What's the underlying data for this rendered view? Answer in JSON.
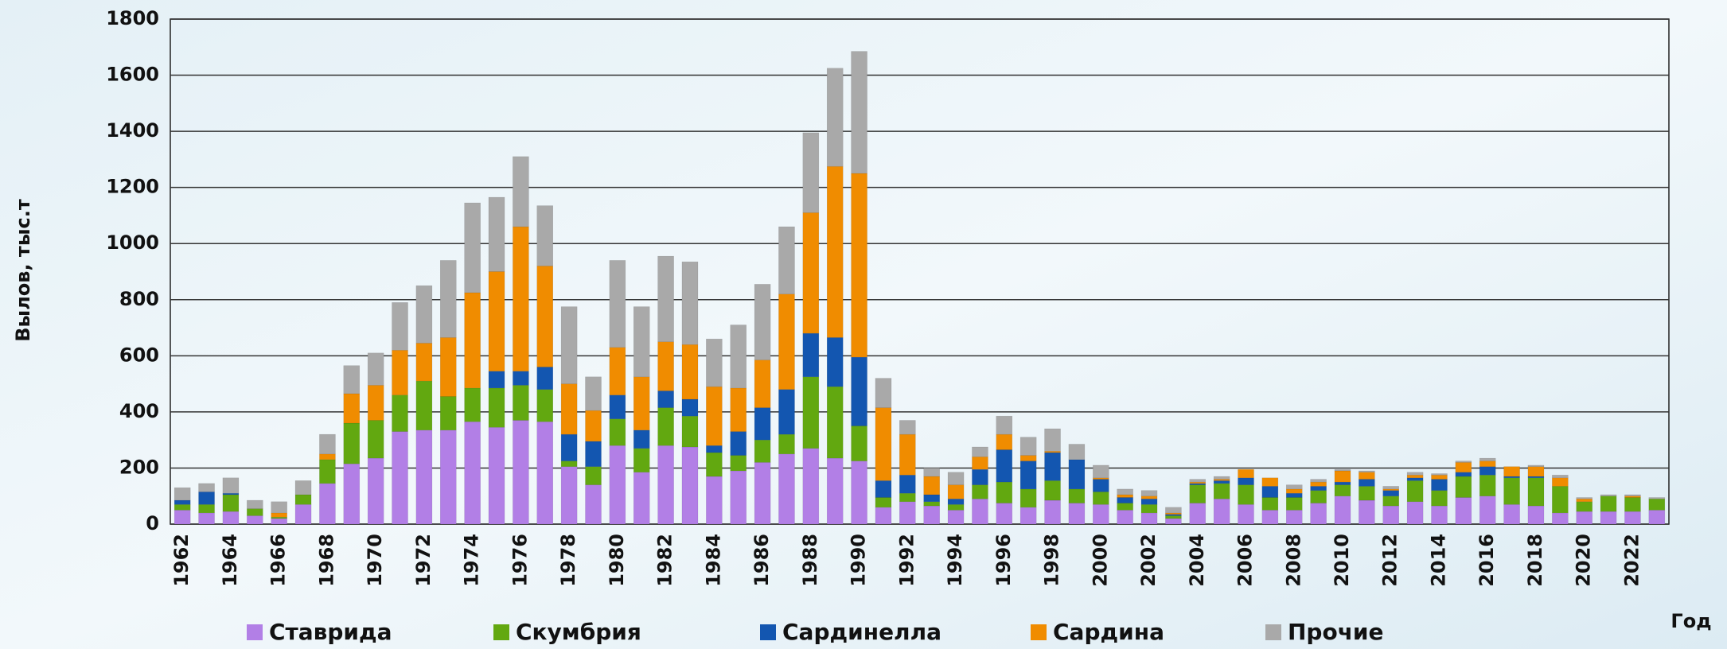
{
  "chart_data": {
    "type": "stacked_bar",
    "y_label": "Вылов, тыс.т",
    "x_label": "Год",
    "categories": [
      "1962",
      null,
      "1964",
      null,
      "1966",
      null,
      "1968",
      null,
      "1970",
      null,
      "1972",
      null,
      "1974",
      null,
      "1976",
      null,
      "1978",
      null,
      "1980",
      null,
      "1982",
      null,
      "1984",
      null,
      "1986",
      null,
      "1988",
      null,
      "1990",
      null,
      "1992",
      null,
      "1994",
      null,
      "1996",
      null,
      "1998",
      null,
      "2000",
      null,
      "2002",
      null,
      "2004",
      null,
      "2006",
      null,
      "2008",
      null,
      "2010",
      null,
      "2012",
      null,
      "2014",
      null,
      "2016",
      null,
      "2018",
      null,
      "2020",
      null,
      "2022",
      null
    ],
    "series": [
      {
        "name": "Ставрида",
        "color": "#b27fe6",
        "values": [
          50,
          40,
          45,
          30,
          20,
          70,
          145,
          215,
          235,
          330,
          335,
          335,
          365,
          345,
          370,
          365,
          205,
          140,
          280,
          185,
          280,
          275,
          170,
          190,
          220,
          250,
          270,
          235,
          225,
          60,
          80,
          65,
          50,
          90,
          75,
          60,
          85,
          75,
          70,
          50,
          40,
          20,
          75,
          90,
          70,
          50,
          50,
          75,
          100,
          85,
          65,
          80,
          65,
          95,
          100,
          70,
          65,
          40,
          45,
          45,
          45,
          50
        ]
      },
      {
        "name": "Скумбрия",
        "color": "#62a810",
        "values": [
          20,
          30,
          60,
          25,
          5,
          35,
          85,
          145,
          135,
          130,
          175,
          120,
          120,
          140,
          125,
          115,
          20,
          65,
          95,
          85,
          135,
          110,
          85,
          55,
          80,
          70,
          255,
          255,
          125,
          35,
          30,
          15,
          20,
          50,
          75,
          65,
          70,
          50,
          45,
          25,
          30,
          10,
          65,
          55,
          70,
          45,
          45,
          45,
          40,
          50,
          35,
          75,
          55,
          75,
          75,
          95,
          100,
          95,
          35,
          55,
          50,
          40
        ]
      },
      {
        "name": "Сардинелла",
        "color": "#1356b0",
        "values": [
          15,
          45,
          5,
          0,
          0,
          0,
          0,
          0,
          0,
          0,
          0,
          0,
          0,
          60,
          50,
          80,
          95,
          90,
          85,
          65,
          60,
          60,
          25,
          85,
          115,
          160,
          155,
          175,
          245,
          60,
          65,
          25,
          20,
          55,
          115,
          100,
          100,
          105,
          45,
          20,
          20,
          5,
          5,
          10,
          25,
          40,
          15,
          15,
          10,
          25,
          20,
          10,
          40,
          15,
          30,
          5,
          5,
          0,
          0,
          0,
          0,
          0
        ]
      },
      {
        "name": "Сардина",
        "color": "#f08c00",
        "values": [
          0,
          0,
          0,
          0,
          15,
          0,
          20,
          105,
          125,
          160,
          135,
          210,
          340,
          355,
          515,
          360,
          180,
          110,
          170,
          190,
          175,
          195,
          210,
          155,
          170,
          340,
          430,
          610,
          655,
          260,
          145,
          65,
          50,
          45,
          55,
          20,
          5,
          0,
          5,
          10,
          10,
          5,
          5,
          5,
          30,
          30,
          15,
          15,
          40,
          25,
          5,
          10,
          15,
          35,
          20,
          35,
          35,
          30,
          10,
          0,
          5,
          0
        ]
      },
      {
        "name": "Прочие",
        "color": "#a9a9a9",
        "values": [
          45,
          30,
          55,
          30,
          40,
          50,
          70,
          100,
          115,
          170,
          205,
          275,
          320,
          265,
          250,
          215,
          275,
          120,
          310,
          250,
          305,
          295,
          170,
          225,
          270,
          240,
          285,
          350,
          435,
          105,
          50,
          30,
          45,
          35,
          65,
          65,
          80,
          55,
          45,
          20,
          20,
          20,
          10,
          10,
          0,
          0,
          15,
          10,
          5,
          5,
          10,
          10,
          5,
          5,
          10,
          0,
          5,
          10,
          5,
          5,
          5,
          5
        ]
      }
    ],
    "ylim": [
      0,
      1800
    ],
    "yticks": [
      0,
      200,
      400,
      600,
      800,
      1000,
      1200,
      1400,
      1600,
      1800
    ],
    "grid": true,
    "legend": "bottom"
  }
}
